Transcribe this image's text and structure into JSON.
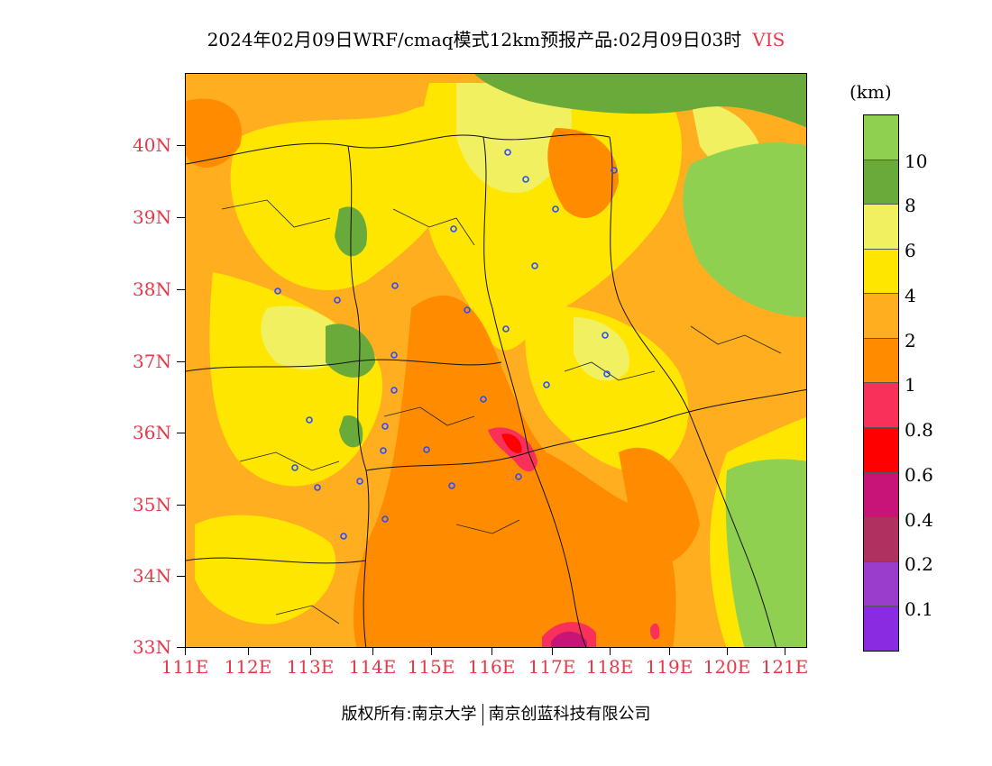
{
  "title": {
    "main": "2024年02月09日WRF/cmaq模式12km预报产品:02月09日03时",
    "variable": "VIS"
  },
  "colorbar": {
    "unit": "(km)",
    "colors": [
      "#90d050",
      "#6aaa3a",
      "#f0f060",
      "#ffe600",
      "#ffae20",
      "#ff8c00",
      "#f8305a",
      "#ff0000",
      "#c81478",
      "#b03060",
      "#9a3ccc",
      "#8a2be2"
    ],
    "tick_labels": [
      "10",
      "8",
      "6",
      "4",
      "2",
      "1",
      "0.8",
      "0.6",
      "0.4",
      "0.2",
      "0.1"
    ]
  },
  "axes": {
    "lat_labels": [
      "40N",
      "39N",
      "38N",
      "37N",
      "36N",
      "35N",
      "34N",
      "33N"
    ],
    "lon_labels": [
      "111E",
      "112E",
      "113E",
      "114E",
      "115E",
      "116E",
      "117E",
      "118E",
      "119E",
      "120E",
      "121E"
    ]
  },
  "footer": {
    "copyright": "版权所有:南京大学",
    "company": "南京创蓝科技有限公司"
  },
  "map": {
    "region": "33N-41N, 111E-121.4E",
    "field": "visibility",
    "city_marker_color": "#2a4cff"
  }
}
